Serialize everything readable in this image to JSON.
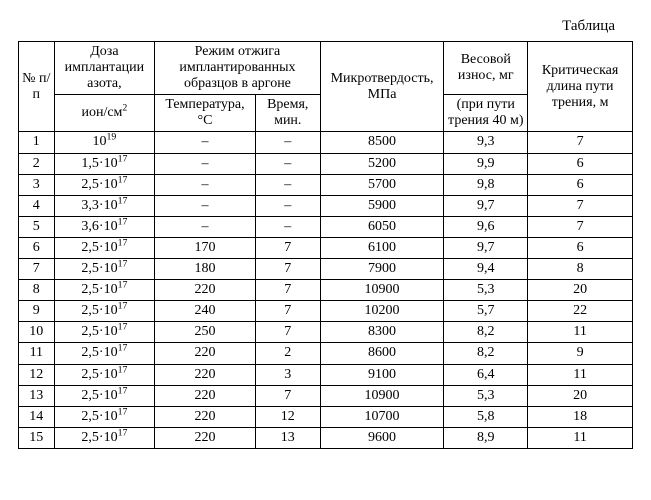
{
  "title": "Таблица",
  "header": {
    "num": "№ п/п",
    "dose_top": "Доза имплантации азота,",
    "dose_bottom_prefix": "ион/см",
    "dose_bottom_exp": "2",
    "regime": "Режим отжига имплантированных образцов в аргоне",
    "temp": "Температура, °C",
    "time": "Время, мин.",
    "hardness": "Микротвердость, МПа",
    "wear_top": "Весовой износ, мг",
    "wear_bottom": "(при пути трения 40 м)",
    "crit": "Критическая длина пути трения, м"
  },
  "rows": [
    {
      "n": "1",
      "dose_base": "10",
      "dose_exp": "19",
      "temp": "–",
      "time": "–",
      "hard": "8500",
      "wear": "9,3",
      "crit": "7"
    },
    {
      "n": "2",
      "dose_base": "1,5·10",
      "dose_exp": "17",
      "temp": "–",
      "time": "–",
      "hard": "5200",
      "wear": "9,9",
      "crit": "6"
    },
    {
      "n": "3",
      "dose_base": "2,5·10",
      "dose_exp": "17",
      "temp": "–",
      "time": "–",
      "hard": "5700",
      "wear": "9,8",
      "crit": "6"
    },
    {
      "n": "4",
      "dose_base": "3,3·10",
      "dose_exp": "17",
      "temp": "–",
      "time": "–",
      "hard": "5900",
      "wear": "9,7",
      "crit": "7"
    },
    {
      "n": "5",
      "dose_base": "3,6·10",
      "dose_exp": "17",
      "temp": "–",
      "time": "–",
      "hard": "6050",
      "wear": "9,6",
      "crit": "7"
    },
    {
      "n": "6",
      "dose_base": "2,5·10",
      "dose_exp": "17",
      "temp": "170",
      "time": "7",
      "hard": "6100",
      "wear": "9,7",
      "crit": "6"
    },
    {
      "n": "7",
      "dose_base": "2,5·10",
      "dose_exp": "17",
      "temp": "180",
      "time": "7",
      "hard": "7900",
      "wear": "9,4",
      "crit": "8"
    },
    {
      "n": "8",
      "dose_base": "2,5·10",
      "dose_exp": "17",
      "temp": "220",
      "time": "7",
      "hard": "10900",
      "wear": "5,3",
      "crit": "20"
    },
    {
      "n": "9",
      "dose_base": "2,5·10",
      "dose_exp": "17",
      "temp": "240",
      "time": "7",
      "hard": "10200",
      "wear": "5,7",
      "crit": "22"
    },
    {
      "n": "10",
      "dose_base": "2,5·10",
      "dose_exp": "17",
      "temp": "250",
      "time": "7",
      "hard": "8300",
      "wear": "8,2",
      "crit": "11"
    },
    {
      "n": "11",
      "dose_base": "2,5·10",
      "dose_exp": "17",
      "temp": "220",
      "time": "2",
      "hard": "8600",
      "wear": "8,2",
      "crit": "9"
    },
    {
      "n": "12",
      "dose_base": "2,5·10",
      "dose_exp": "17",
      "temp": "220",
      "time": "3",
      "hard": "9100",
      "wear": "6,4",
      "crit": "11"
    },
    {
      "n": "13",
      "dose_base": "2,5·10",
      "dose_exp": "17",
      "temp": "220",
      "time": "7",
      "hard": "10900",
      "wear": "5,3",
      "crit": "20"
    },
    {
      "n": "14",
      "dose_base": "2,5·10",
      "dose_exp": "17",
      "temp": "220",
      "time": "12",
      "hard": "10700",
      "wear": "5,8",
      "crit": "18"
    },
    {
      "n": "15",
      "dose_base": "2,5·10",
      "dose_exp": "17",
      "temp": "220",
      "time": "13",
      "hard": "9600",
      "wear": "8,9",
      "crit": "11"
    }
  ]
}
